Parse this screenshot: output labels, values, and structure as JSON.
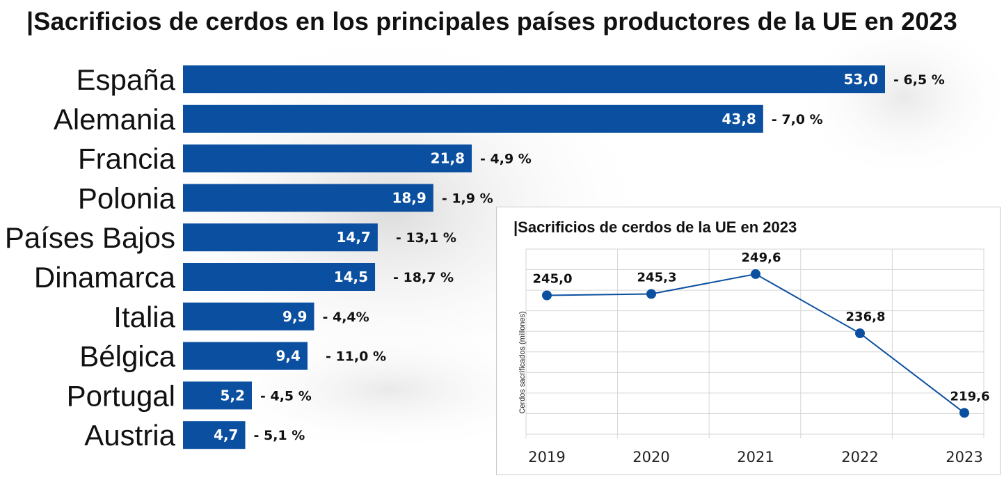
{
  "title": "|Sacrificios de cerdos en los principales países productores de la UE en 2023",
  "colors": {
    "bar": "#0B4FA0",
    "line": "#0B4FA0",
    "text": "#111111",
    "grid": "#d6d6d6"
  },
  "chart_data": [
    {
      "type": "bar",
      "orientation": "horizontal",
      "categories": [
        "España",
        "Alemania",
        "Francia",
        "Polonia",
        "Países Bajos",
        "Dinamarca",
        "Italia",
        "Bélgica",
        "Portugal",
        "Austria"
      ],
      "values": [
        53.0,
        43.8,
        21.8,
        18.9,
        14.7,
        14.5,
        9.9,
        9.4,
        5.2,
        4.7
      ],
      "value_labels": [
        "53,0",
        "43,8",
        "21,8",
        "18,9",
        "14,7",
        "14,5",
        "9,9",
        "9,4",
        "5,2",
        "4,7"
      ],
      "change_labels": [
        "- 6,5 %",
        "- 7,0 %",
        "- 4,9 %",
        "- 1,9 %",
        "- 13,1 %",
        "- 18,7 %",
        "- 4,4%",
        "- 11,0 %",
        "- 4,5 %",
        "- 5,1 %"
      ],
      "grid": false,
      "legend": "none"
    },
    {
      "type": "line",
      "title": "|Sacrificios de cerdos de la UE en 2023",
      "ylabel": "Cerdos sacrificados (millones)",
      "x": [
        "2019",
        "2020",
        "2021",
        "2022",
        "2023"
      ],
      "values": [
        245.0,
        245.3,
        249.6,
        236.8,
        219.6
      ],
      "value_labels": [
        "245,0",
        "245,3",
        "249,6",
        "236,8",
        "219,6"
      ],
      "ylim": [
        215,
        255
      ],
      "grid": true,
      "legend": "none"
    }
  ]
}
